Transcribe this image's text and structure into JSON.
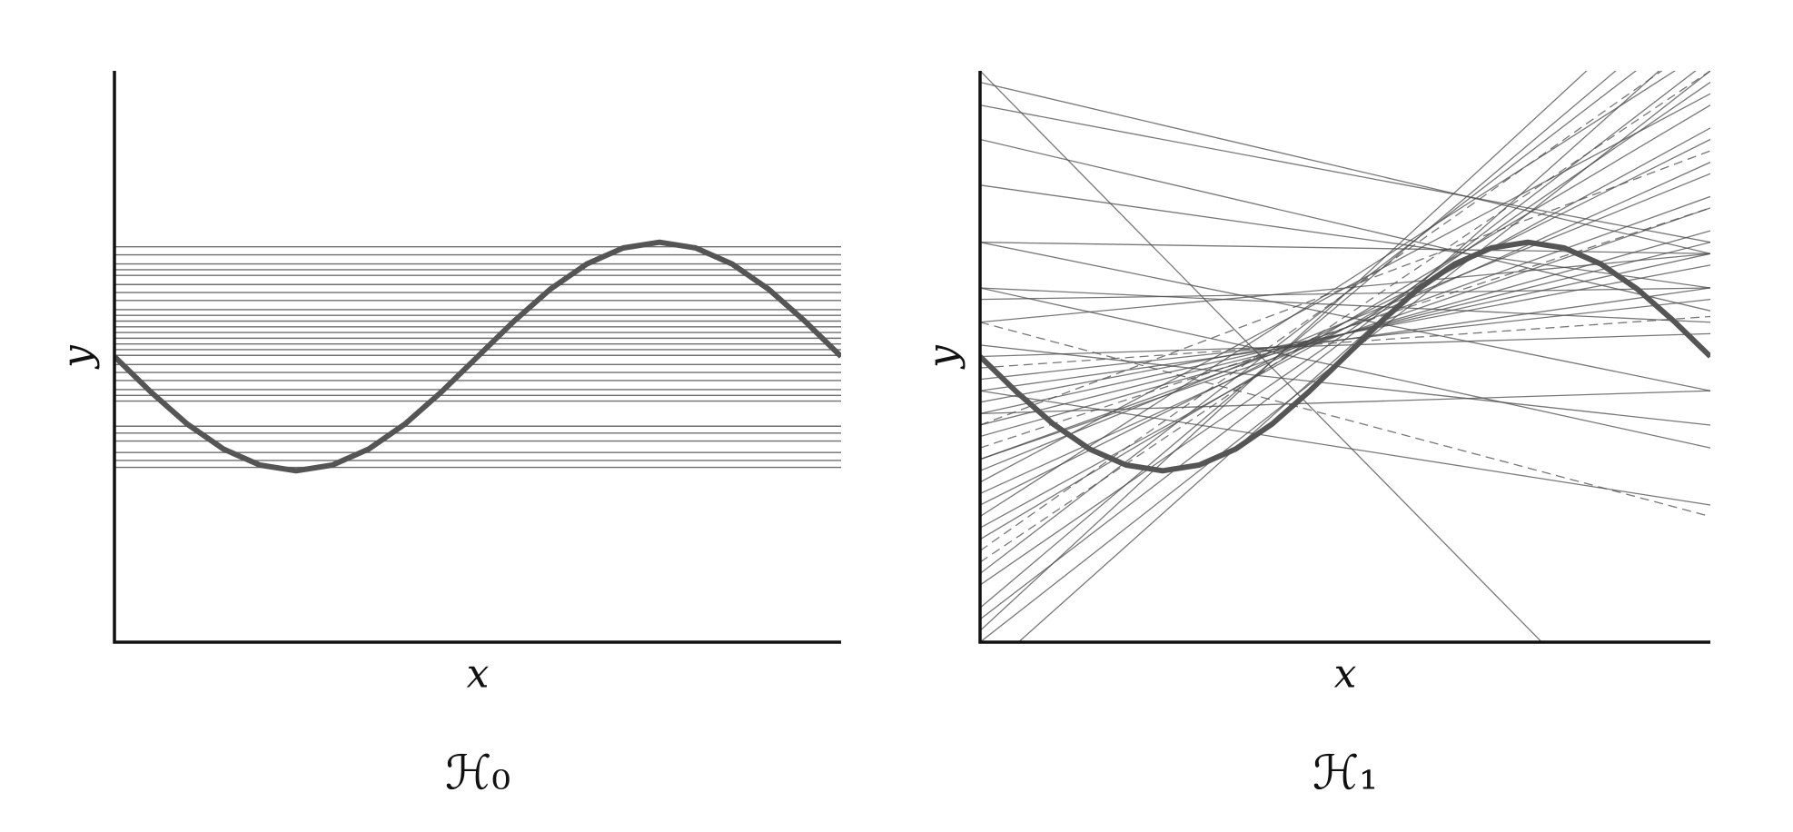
{
  "chart_data": [
    {
      "type": "constant",
      "title": "ℋ₀",
      "xlabel": "x",
      "ylabel": "y",
      "xlim": [
        -1,
        1
      ],
      "ylim": [
        -2.5,
        2.5
      ],
      "color": "#4a4a4a",
      "values": [
        0.96,
        0.89,
        0.81,
        0.76,
        0.71,
        0.63,
        0.56,
        0.49,
        0.41,
        0.36,
        0.31,
        0.26,
        0.21,
        0.16,
        0.11,
        0.06,
        0.01,
        -0.07,
        -0.14,
        -0.21,
        -0.29,
        -0.34,
        -0.39,
        -0.61,
        -0.67,
        -0.74,
        -0.84,
        -0.91,
        -0.97
      ],
      "target": {
        "color": "#555555",
        "x": [
          -1,
          -0.9,
          -0.8,
          -0.7,
          -0.6,
          -0.5,
          -0.4,
          -0.3,
          -0.2,
          -0.1,
          0,
          0.1,
          0.2,
          0.3,
          0.4,
          0.5,
          0.6,
          0.7,
          0.8,
          0.9,
          1
        ],
        "values": [
          0,
          -0.31,
          -0.59,
          -0.81,
          -0.95,
          -1,
          -0.95,
          -0.81,
          -0.59,
          -0.31,
          0,
          0.31,
          0.59,
          0.81,
          0.95,
          1,
          0.95,
          0.81,
          0.59,
          0.31,
          0
        ]
      }
    },
    {
      "type": "line",
      "title": "ℋ₁",
      "xlabel": "x",
      "ylabel": "y",
      "xlim": [
        -1,
        1
      ],
      "ylim": [
        -2.5,
        2.5
      ],
      "color": "#4a4a4a",
      "x": [
        -1,
        1
      ],
      "series": [
        {
          "values": [
            -2.5,
            2.5
          ]
        },
        {
          "values": [
            -2.3,
            2.6
          ]
        },
        {
          "values": [
            -2.0,
            2.4
          ]
        },
        {
          "values": [
            -1.8,
            2.5
          ]
        },
        {
          "values": [
            -1.6,
            2.2
          ]
        },
        {
          "values": [
            -1.5,
            2.0
          ]
        },
        {
          "values": [
            -1.3,
            1.9
          ]
        },
        {
          "values": [
            -1.2,
            1.7
          ]
        },
        {
          "values": [
            -1.0,
            1.6
          ]
        },
        {
          "values": [
            -0.9,
            1.4
          ]
        },
        {
          "values": [
            -0.8,
            1.3
          ]
        },
        {
          "values": [
            -0.7,
            1.1
          ]
        },
        {
          "values": [
            -0.6,
            1.0
          ]
        },
        {
          "values": [
            -0.5,
            0.9
          ]
        },
        {
          "values": [
            -0.4,
            0.8
          ]
        },
        {
          "values": [
            -0.3,
            0.6
          ]
        },
        {
          "values": [
            -0.2,
            0.5
          ]
        },
        {
          "values": [
            -0.1,
            0.35
          ]
        },
        {
          "values": [
            0,
            0.2
          ]
        },
        {
          "values": [
            -2.2,
            3.2
          ]
        },
        {
          "values": [
            -2.8,
            2.9
          ]
        },
        {
          "values": [
            -1.9,
            3.0
          ]
        },
        {
          "values": [
            -1.4,
            2.7
          ]
        },
        {
          "values": [
            -1.1,
            2.3
          ]
        },
        {
          "values": [
            -0.6,
            1.8
          ]
        },
        {
          "values": [
            0.3,
            0.9
          ]
        },
        {
          "values": [
            0.5,
            0.6
          ]
        },
        {
          "values": [
            1.0,
            0.9
          ]
        },
        {
          "values": [
            1.5,
            0.6
          ]
        },
        {
          "values": [
            1.0,
            -0.3
          ]
        },
        {
          "values": [
            0.6,
            -0.8
          ]
        },
        {
          "values": [
            0.3,
            -1.4
          ]
        },
        {
          "values": [
            2.4,
            0.9
          ]
        },
        {
          "values": [
            2.5,
            -4
          ]
        },
        {
          "values": [
            1.9,
            0.4
          ]
        },
        {
          "values": [
            0.1,
            -0.6
          ]
        },
        {
          "values": [
            -0.5,
            -0.3
          ]
        },
        {
          "values": [
            -0.9,
            1.3
          ]
        },
        {
          "values": [
            -1.7,
            2.8
          ]
        },
        {
          "values": [
            -2.4,
            3.5
          ]
        },
        {
          "values": [
            -0.3,
            -1.3
          ]
        },
        {
          "values": [
            0.6,
            0.3
          ]
        },
        {
          "values": [
            2.2,
            1.0
          ]
        }
      ],
      "target": {
        "color": "#555555",
        "x": [
          -1,
          -0.9,
          -0.8,
          -0.7,
          -0.6,
          -0.5,
          -0.4,
          -0.3,
          -0.2,
          -0.1,
          0,
          0.1,
          0.2,
          0.3,
          0.4,
          0.5,
          0.6,
          0.7,
          0.8,
          0.9,
          1
        ],
        "values": [
          0,
          -0.31,
          -0.59,
          -0.81,
          -0.95,
          -1,
          -0.95,
          -0.81,
          -0.59,
          -0.31,
          0,
          0.31,
          0.59,
          0.81,
          0.95,
          1,
          0.95,
          0.81,
          0.59,
          0.31,
          0
        ]
      }
    }
  ]
}
